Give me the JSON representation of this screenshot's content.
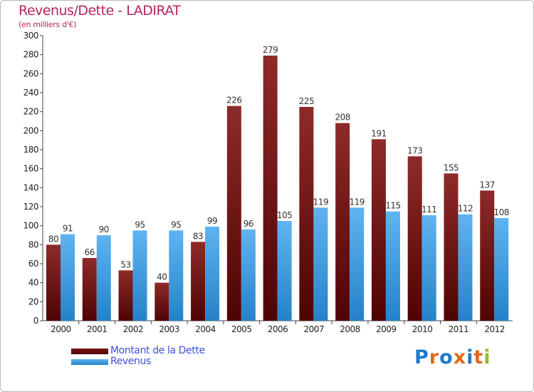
{
  "title": "Revenus/Dette - LADIRAT",
  "subtitle": "(en milliers d'€)",
  "chart_data": {
    "type": "bar",
    "title": "Revenus/Dette - LADIRAT",
    "subtitle": "(en milliers d'€)",
    "xlabel": "",
    "ylabel": "",
    "ylim": [
      0,
      300
    ],
    "yticks": [
      0,
      20,
      40,
      60,
      80,
      100,
      120,
      140,
      160,
      180,
      200,
      220,
      240,
      260,
      280,
      300
    ],
    "grid": false,
    "legend_position": "bottom-left",
    "categories": [
      "2000",
      "2001",
      "2002",
      "2003",
      "2004",
      "2005",
      "2006",
      "2007",
      "2008",
      "2009",
      "2010",
      "2011",
      "2012"
    ],
    "series": [
      {
        "name": "Montant de la Dette",
        "color": "#7a1010",
        "values": [
          80,
          66,
          53,
          40,
          83,
          226,
          279,
          225,
          208,
          191,
          173,
          155,
          137
        ]
      },
      {
        "name": "Revenus",
        "color": "#3b9ae1",
        "values": [
          91,
          90,
          95,
          95,
          99,
          96,
          105,
          119,
          119,
          115,
          111,
          112,
          108
        ]
      }
    ]
  },
  "legend": {
    "items": [
      {
        "label": "Montant de la Dette",
        "color": "#6b0a0a"
      },
      {
        "label": "Revenus",
        "color": "#3d9de4"
      }
    ]
  },
  "logo": {
    "text": "Proxiti",
    "letter_colors": [
      "#1f78c8",
      "#e06a1a",
      "#1f78c8",
      "#e06a1a",
      "#1f78c8",
      "#e06a1a",
      "#8bbd2b"
    ]
  }
}
